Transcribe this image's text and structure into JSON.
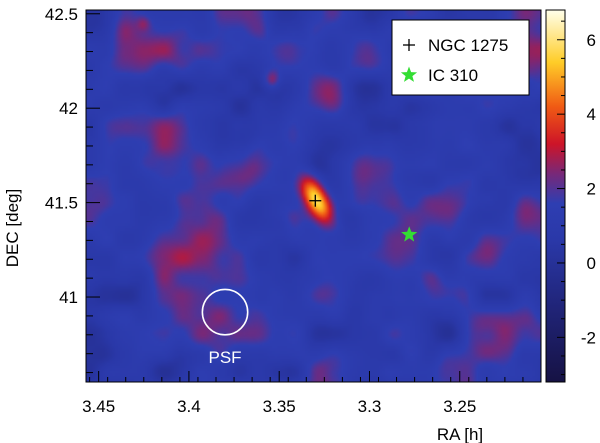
{
  "chart_data": {
    "type": "heatmap",
    "title": "",
    "xlabel": "RA [h]",
    "ylabel": "DEC [deg]",
    "xlim": [
      3.457,
      3.205
    ],
    "ylim": [
      40.55,
      42.52
    ],
    "x_reversed": true,
    "x_ticks": [
      3.45,
      3.4,
      3.35,
      3.3,
      3.25
    ],
    "x_tick_labels": [
      "3.45",
      "3.4",
      "3.35",
      "3.3",
      "3.25"
    ],
    "y_ticks": [
      41,
      41.5,
      42,
      42.5
    ],
    "y_tick_labels": [
      "41",
      "41.5",
      "42",
      "42.5"
    ],
    "colorbar": {
      "range": [
        -3.2,
        6.8
      ],
      "ticks": [
        -2,
        0,
        2,
        4,
        6
      ],
      "tick_labels": [
        "-2",
        "0",
        "2",
        "4",
        "6"
      ]
    },
    "background_level": 1.3,
    "peaks": [
      {
        "ra": 3.329,
        "dec": 41.51,
        "amplitude": 5.4,
        "sigma_major_deg": 0.1,
        "sigma_minor_deg": 0.05,
        "angle_deg": 55
      },
      {
        "ra": 3.354,
        "dec": 42.15,
        "amplitude": 1.8,
        "sigma_major_deg": 0.035,
        "sigma_minor_deg": 0.035,
        "angle_deg": 0
      },
      {
        "ra": 3.425,
        "dec": 42.45,
        "amplitude": 1.0,
        "sigma_major_deg": 0.03,
        "sigma_minor_deg": 0.03,
        "angle_deg": 0
      }
    ],
    "sources": [
      {
        "name": "NGC 1275",
        "ra": 3.33,
        "dec": 41.51,
        "marker": "cross",
        "color": "#000000"
      },
      {
        "name": "IC 310",
        "ra": 3.278,
        "dec": 41.33,
        "marker": "star",
        "color": "#33dd33"
      }
    ],
    "psf": {
      "label": "PSF",
      "ra": 3.38,
      "dec": 40.92,
      "radius_deg": 0.12,
      "color": "#ffffff"
    },
    "legend": {
      "placement": "top-right",
      "entries": [
        "NGC 1275",
        "IC 310"
      ]
    }
  }
}
